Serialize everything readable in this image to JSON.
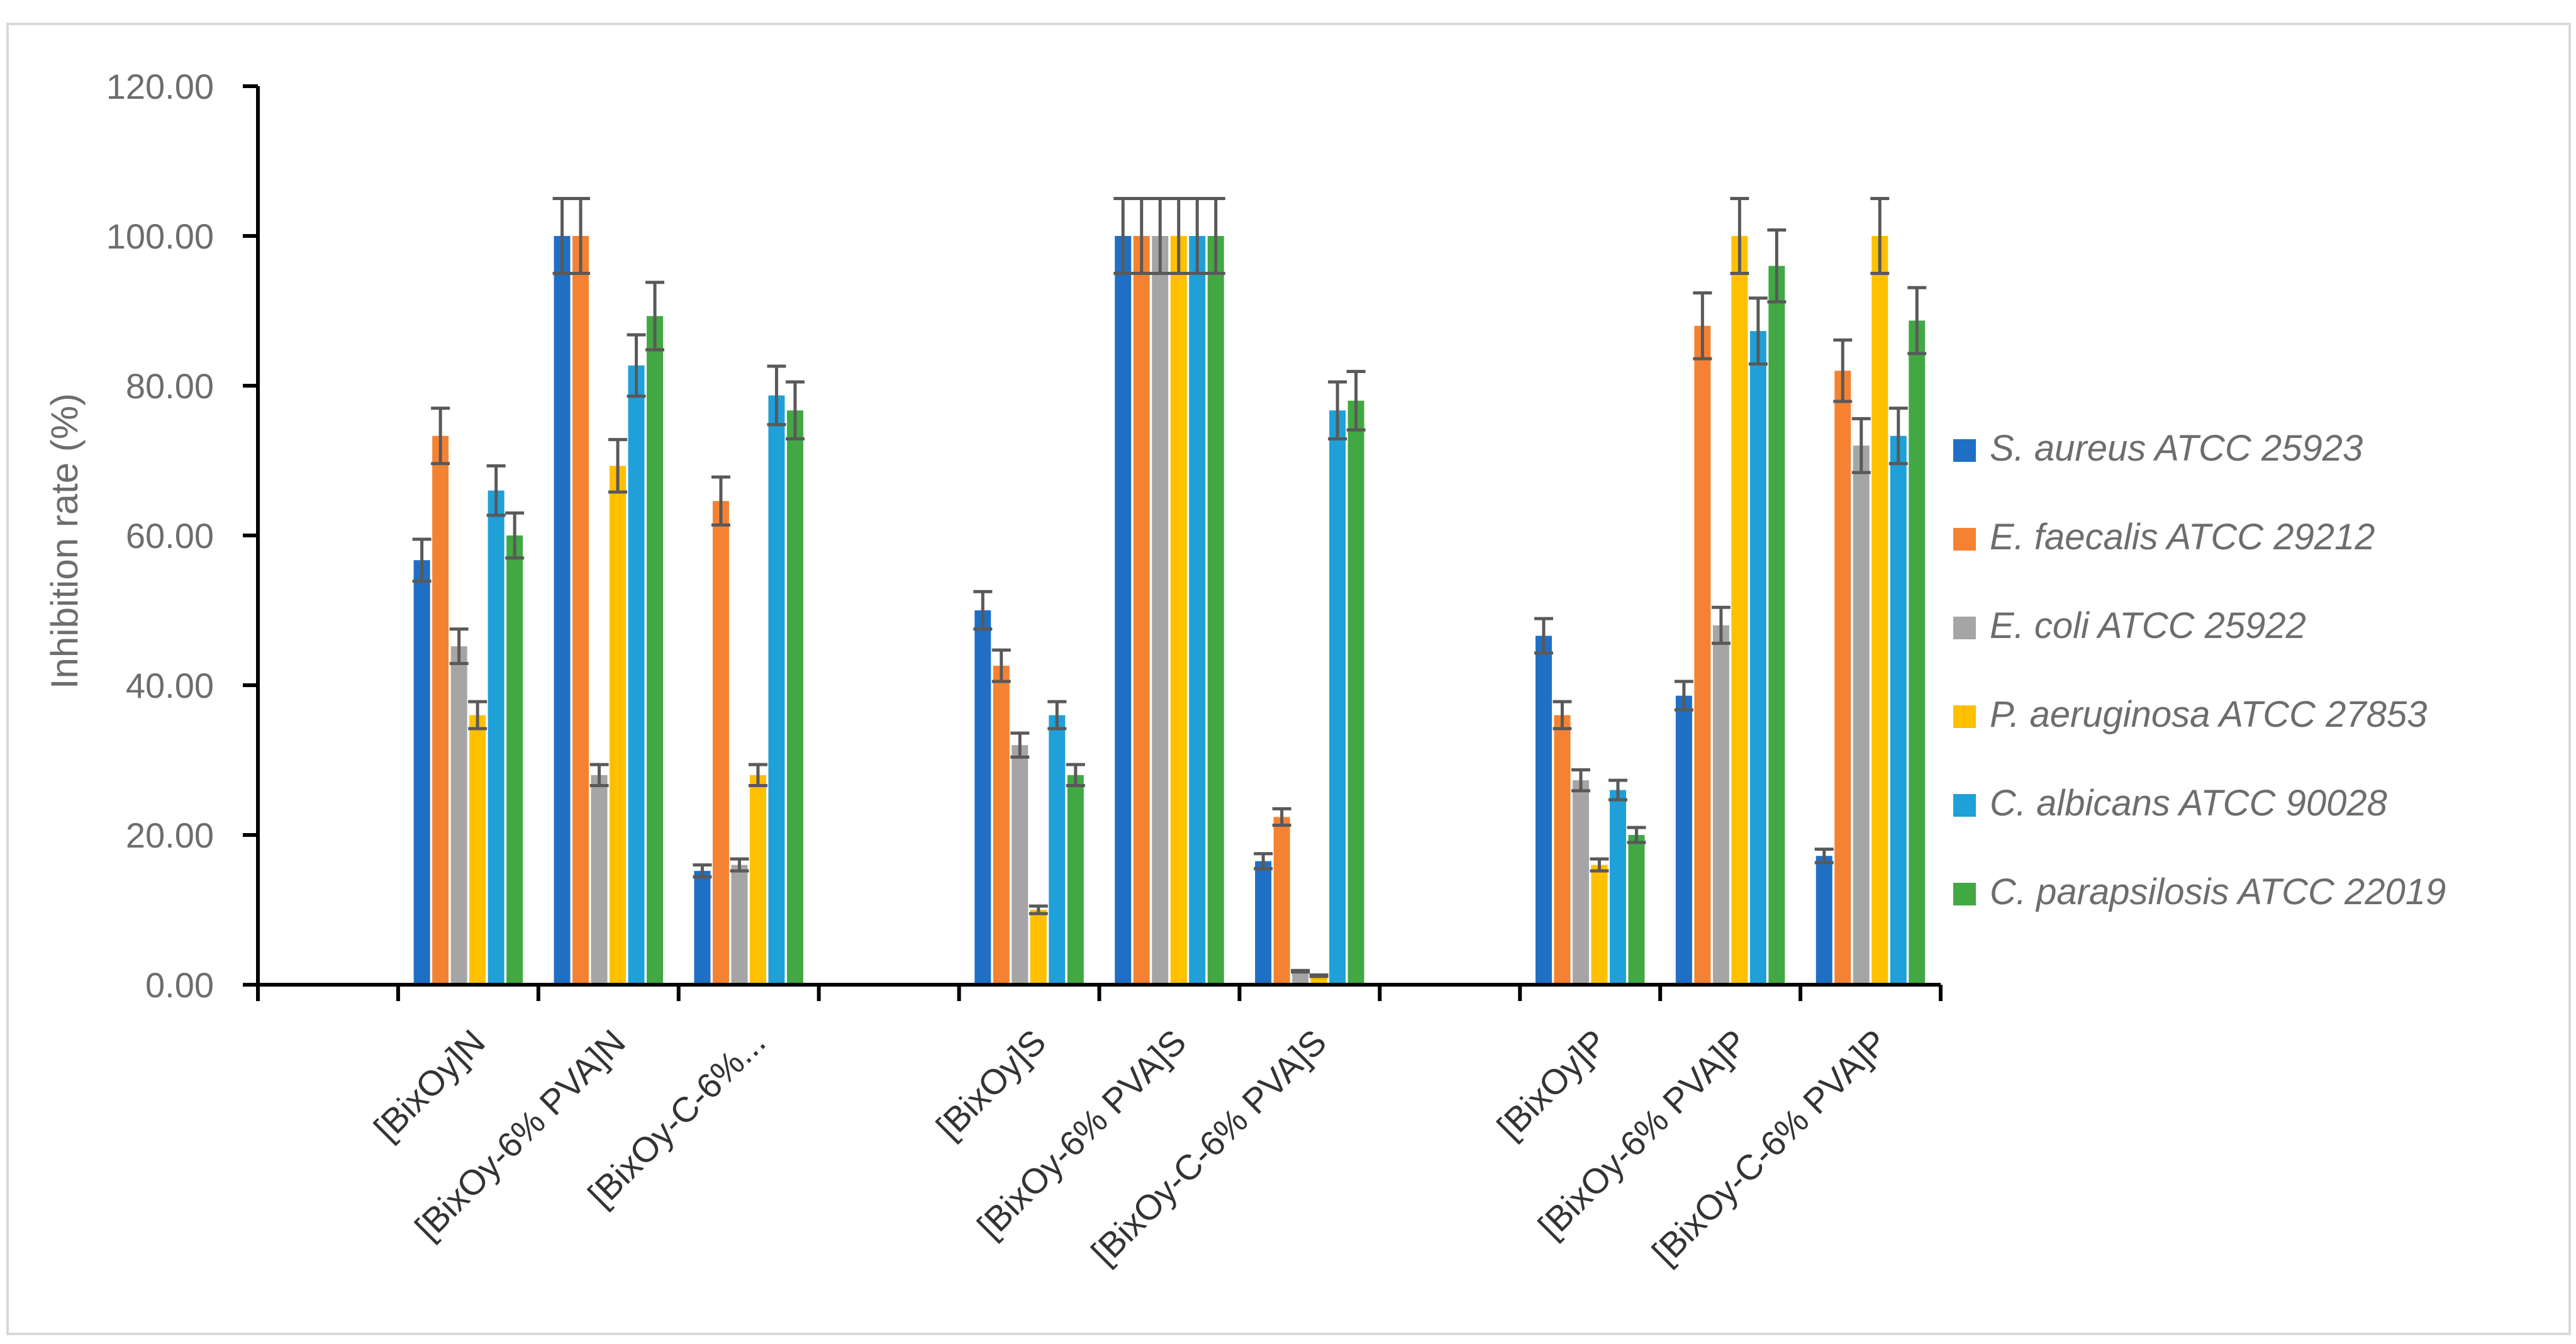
{
  "chart_data": {
    "type": "bar",
    "title": "",
    "xlabel": "",
    "ylabel": "Inhibition rate (%)",
    "ylim": [
      0,
      120
    ],
    "yticks": [
      "0.00",
      "20.00",
      "40.00",
      "60.00",
      "80.00",
      "100.00",
      "120.00"
    ],
    "grid": false,
    "legend_position": "right",
    "categories": [
      "[BixOy]N",
      "[BixOy-6% PVA]N",
      "[BixOy-C-6%...",
      "[BixOy]S",
      "[BixOy-6% PVA]S",
      "[BixOy-C-6% PVA]S",
      "[BixOy]P",
      "[BixOy-6% PVA]P",
      "[BixOy-C-6% PVA]P"
    ],
    "series": [
      {
        "name": "S. aureus  ATCC 25923",
        "color": "#1f6fc5",
        "values": [
          56.7,
          100,
          15.2,
          50.0,
          100,
          16.5,
          46.6,
          38.6,
          17.2
        ],
        "errors": [
          2.8,
          5.0,
          0.8,
          2.5,
          5.0,
          1.0,
          2.3,
          1.9,
          0.9
        ]
      },
      {
        "name": "E. faecalis ATCC 29212",
        "color": "#f58232",
        "values": [
          73.3,
          100,
          64.6,
          42.6,
          100,
          22.4,
          36.0,
          88.0,
          82.0
        ],
        "errors": [
          3.7,
          5.0,
          3.2,
          2.1,
          5.0,
          1.1,
          1.8,
          4.4,
          4.1
        ]
      },
      {
        "name": "E. coli ATCC 25922",
        "color": "#a5a5a5",
        "values": [
          45.2,
          28.0,
          16.0,
          32.0,
          100,
          1.8,
          27.3,
          48.0,
          72.0
        ],
        "errors": [
          2.3,
          1.4,
          0.8,
          1.6,
          5.0,
          0.1,
          1.4,
          2.4,
          3.6
        ]
      },
      {
        "name": "P. aeruginosa  ATCC 27853",
        "color": "#ffc000",
        "values": [
          36.0,
          69.3,
          28.0,
          10.0,
          100,
          1.2,
          16.0,
          100,
          100
        ],
        "errors": [
          1.8,
          3.5,
          1.4,
          0.5,
          5.0,
          0.1,
          0.8,
          5.0,
          5.0
        ]
      },
      {
        "name": "C. albicans ATCC 90028",
        "color": "#1fa0d8",
        "values": [
          66.0,
          82.7,
          78.7,
          36.0,
          100,
          76.7,
          26.0,
          87.3,
          73.3
        ],
        "errors": [
          3.3,
          4.1,
          3.9,
          1.8,
          5.0,
          3.8,
          1.3,
          4.4,
          3.7
        ]
      },
      {
        "name": "C. parapsilosis ATCC 22019",
        "color": "#42a843",
        "values": [
          60.0,
          89.3,
          76.7,
          28.0,
          100,
          78.0,
          20.0,
          96.0,
          88.7
        ],
        "errors": [
          3.0,
          4.5,
          3.8,
          1.4,
          5.0,
          3.9,
          1.0,
          4.8,
          4.4
        ]
      }
    ]
  }
}
